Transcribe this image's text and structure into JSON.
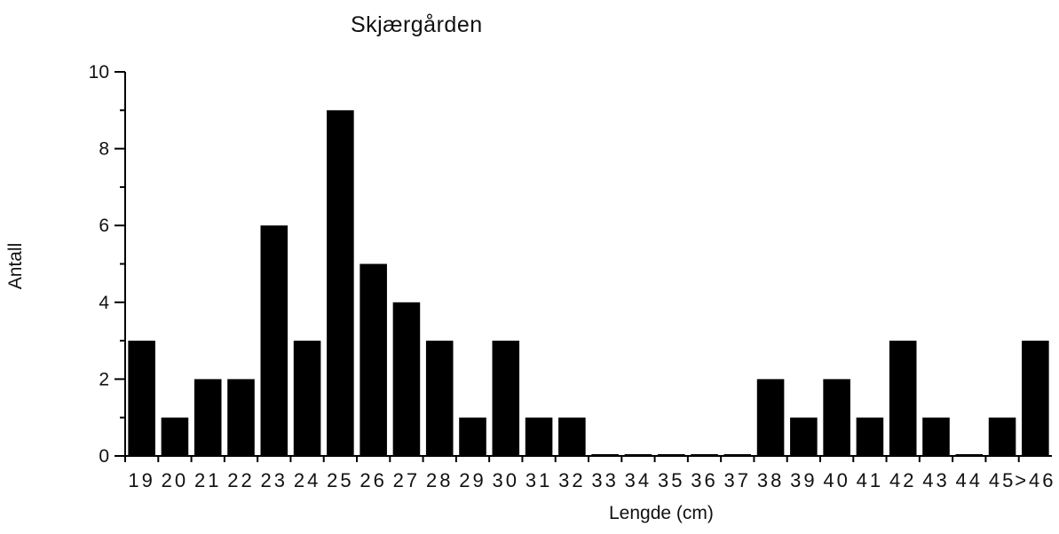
{
  "chart_data": {
    "type": "bar",
    "title": "Skjærgården",
    "xlabel": "Lengde (cm)",
    "ylabel": "Antall",
    "categories": [
      "19",
      "20",
      "21",
      "22",
      "23",
      "24",
      "25",
      "26",
      "27",
      "28",
      "29",
      "30",
      "31",
      "32",
      "33",
      "34",
      "35",
      "36",
      "37",
      "38",
      "39",
      "40",
      "41",
      "42",
      "43",
      "44",
      "45",
      "46"
    ],
    "last_category_prefix": ">",
    "values": [
      3,
      1,
      2,
      2,
      6,
      3,
      9,
      5,
      4,
      3,
      1,
      3,
      1,
      1,
      0,
      0,
      0,
      0,
      0,
      2,
      1,
      2,
      1,
      3,
      1,
      0,
      1,
      3
    ],
    "ylim": [
      0,
      10
    ],
    "yticks": [
      0,
      2,
      4,
      6,
      8,
      10
    ],
    "bar_color": "#000000",
    "grid": false,
    "legend": "none"
  }
}
